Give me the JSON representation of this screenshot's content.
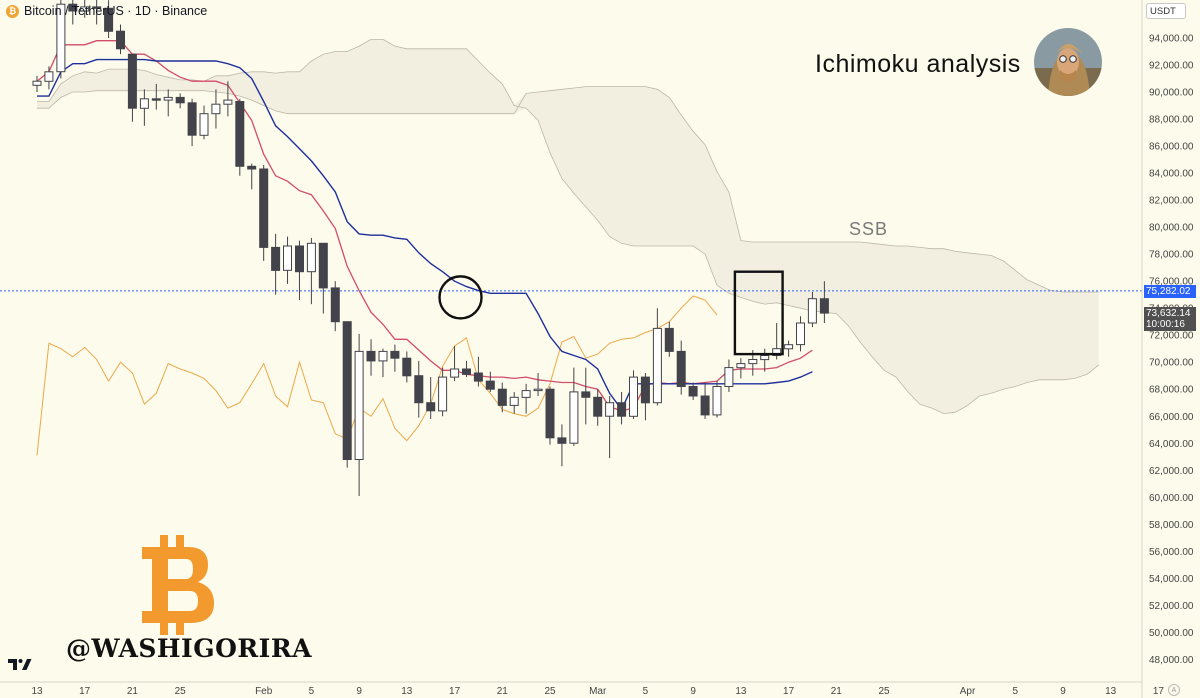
{
  "header": {
    "symbol_title": "Bitcoin / TetherUS · 1D · Binance",
    "currency": "USDT"
  },
  "headline": "Ichimoku analysis",
  "annotation_ssb": "SSB",
  "watermark_handle": "@WASHIGORIRA",
  "price_labels": {
    "last_price": "75,282.02",
    "current_price": "73,632.14",
    "countdown": "10:00:16"
  },
  "colors": {
    "background": "#fdfbeb",
    "bull_candle": "#ffffff",
    "bear_candle": "#43434b",
    "tenkan": "#d24c6c",
    "kijun": "#1f2f9c",
    "chikou": "#eba94c",
    "kumo": "#ede9dc",
    "last_price_label": "#2962ff",
    "bitcoin_orange": "#f29a2e"
  },
  "chart_data": {
    "type": "candlestick",
    "ylim": [
      46700,
      96000
    ],
    "y_ticks": [
      48000,
      50000,
      52000,
      54000,
      56000,
      58000,
      60000,
      62000,
      64000,
      66000,
      68000,
      70000,
      72000,
      74000,
      76000,
      78000,
      80000,
      82000,
      84000,
      86000,
      88000,
      90000,
      92000,
      94000
    ],
    "y_tick_labels": [
      "48,000.00",
      "50,000.00",
      "52,000.00",
      "54,000.00",
      "56,000.00",
      "58,000.00",
      "60,000.00",
      "62,000.00",
      "64,000.00",
      "66,000.00",
      "68,000.00",
      "70,000.00",
      "72,000.00",
      "74,000.00",
      "76,000.00",
      "78,000.00",
      "80,000.00",
      "82,000.00",
      "84,000.00",
      "86,000.00",
      "88,000.00",
      "90,000.00",
      "92,000.00",
      "94,000.00"
    ],
    "x_tick_labels": [
      {
        "day": 0,
        "label": "13"
      },
      {
        "day": 4,
        "label": "17"
      },
      {
        "day": 8,
        "label": "21"
      },
      {
        "day": 12,
        "label": "25"
      },
      {
        "day": 19,
        "label": "Feb"
      },
      {
        "day": 23,
        "label": "5"
      },
      {
        "day": 27,
        "label": "9"
      },
      {
        "day": 31,
        "label": "13"
      },
      {
        "day": 35,
        "label": "17"
      },
      {
        "day": 39,
        "label": "21"
      },
      {
        "day": 43,
        "label": "25"
      },
      {
        "day": 47,
        "label": "Mar"
      },
      {
        "day": 51,
        "label": "5"
      },
      {
        "day": 55,
        "label": "9"
      },
      {
        "day": 59,
        "label": "13"
      },
      {
        "day": 63,
        "label": "17"
      },
      {
        "day": 67,
        "label": "21"
      },
      {
        "day": 71,
        "label": "25"
      },
      {
        "day": 78,
        "label": "Apr"
      },
      {
        "day": 82,
        "label": "5"
      },
      {
        "day": 86,
        "label": "9"
      },
      {
        "day": 90,
        "label": "13"
      },
      {
        "day": 94,
        "label": "17"
      }
    ],
    "candles": [
      {
        "o": 90500,
        "h": 91200,
        "l": 90000,
        "c": 90800
      },
      {
        "o": 90800,
        "h": 91900,
        "l": 90200,
        "c": 91500
      },
      {
        "o": 91500,
        "h": 97000,
        "l": 91000,
        "c": 96500
      },
      {
        "o": 96500,
        "h": 97000,
        "l": 95000,
        "c": 96000
      },
      {
        "o": 96000,
        "h": 97000,
        "l": 95500,
        "c": 96300
      },
      {
        "o": 96300,
        "h": 97500,
        "l": 95000,
        "c": 96200
      },
      {
        "o": 96200,
        "h": 96800,
        "l": 94000,
        "c": 94500
      },
      {
        "o": 94500,
        "h": 95000,
        "l": 92800,
        "c": 93200
      },
      {
        "o": 92800,
        "h": 92800,
        "l": 87800,
        "c": 88800
      },
      {
        "o": 88800,
        "h": 90200,
        "l": 87500,
        "c": 89500
      },
      {
        "o": 89500,
        "h": 90600,
        "l": 88700,
        "c": 89400
      },
      {
        "o": 89400,
        "h": 90200,
        "l": 88200,
        "c": 89600
      },
      {
        "o": 89600,
        "h": 89900,
        "l": 88800,
        "c": 89200
      },
      {
        "o": 89200,
        "h": 89500,
        "l": 86000,
        "c": 86800
      },
      {
        "o": 86800,
        "h": 89000,
        "l": 86500,
        "c": 88400
      },
      {
        "o": 88400,
        "h": 90200,
        "l": 87300,
        "c": 89100
      },
      {
        "o": 89100,
        "h": 90800,
        "l": 88200,
        "c": 89400
      },
      {
        "o": 89300,
        "h": 89500,
        "l": 83800,
        "c": 84500
      },
      {
        "o": 84500,
        "h": 84700,
        "l": 82800,
        "c": 84300
      },
      {
        "o": 84300,
        "h": 84600,
        "l": 77500,
        "c": 78500
      },
      {
        "o": 78500,
        "h": 79500,
        "l": 75000,
        "c": 76800
      },
      {
        "o": 76800,
        "h": 79300,
        "l": 75800,
        "c": 78600
      },
      {
        "o": 78600,
        "h": 79000,
        "l": 74600,
        "c": 76700
      },
      {
        "o": 76700,
        "h": 79200,
        "l": 74300,
        "c": 78800
      },
      {
        "o": 78800,
        "h": 78800,
        "l": 73600,
        "c": 75500
      },
      {
        "o": 75500,
        "h": 76000,
        "l": 72300,
        "c": 73000
      },
      {
        "o": 73000,
        "h": 73000,
        "l": 62200,
        "c": 62800
      },
      {
        "o": 62800,
        "h": 72100,
        "l": 60100,
        "c": 70800
      },
      {
        "o": 70800,
        "h": 71700,
        "l": 69000,
        "c": 70100
      },
      {
        "o": 70100,
        "h": 71000,
        "l": 68900,
        "c": 70800
      },
      {
        "o": 70800,
        "h": 71300,
        "l": 69300,
        "c": 70300
      },
      {
        "o": 70300,
        "h": 70800,
        "l": 68500,
        "c": 69000
      },
      {
        "o": 69000,
        "h": 70100,
        "l": 65900,
        "c": 67000
      },
      {
        "o": 67000,
        "h": 68900,
        "l": 65800,
        "c": 66400
      },
      {
        "o": 66400,
        "h": 69600,
        "l": 66000,
        "c": 68900
      },
      {
        "o": 68900,
        "h": 71200,
        "l": 68600,
        "c": 69500
      },
      {
        "o": 69500,
        "h": 70100,
        "l": 68900,
        "c": 69100
      },
      {
        "o": 69200,
        "h": 70400,
        "l": 68200,
        "c": 68600
      },
      {
        "o": 68600,
        "h": 69300,
        "l": 67800,
        "c": 68000
      },
      {
        "o": 68000,
        "h": 68500,
        "l": 66300,
        "c": 66800
      },
      {
        "o": 66800,
        "h": 67800,
        "l": 66200,
        "c": 67400
      },
      {
        "o": 67400,
        "h": 68400,
        "l": 66200,
        "c": 67900
      },
      {
        "o": 67900,
        "h": 69200,
        "l": 67500,
        "c": 68000
      },
      {
        "o": 68000,
        "h": 68200,
        "l": 63900,
        "c": 64400
      },
      {
        "o": 64400,
        "h": 65400,
        "l": 62300,
        "c": 64000
      },
      {
        "o": 64000,
        "h": 69600,
        "l": 63800,
        "c": 67800
      },
      {
        "o": 67800,
        "h": 69600,
        "l": 65400,
        "c": 67400
      },
      {
        "o": 67400,
        "h": 68000,
        "l": 65300,
        "c": 66000
      },
      {
        "o": 66000,
        "h": 67500,
        "l": 62900,
        "c": 67000
      },
      {
        "o": 67000,
        "h": 67800,
        "l": 65400,
        "c": 66000
      },
      {
        "o": 66000,
        "h": 69400,
        "l": 65800,
        "c": 68900
      },
      {
        "o": 68900,
        "h": 69200,
        "l": 65700,
        "c": 67000
      },
      {
        "o": 67000,
        "h": 74000,
        "l": 66800,
        "c": 72500
      },
      {
        "o": 72500,
        "h": 73000,
        "l": 70400,
        "c": 70800
      },
      {
        "o": 70800,
        "h": 71600,
        "l": 67600,
        "c": 68200
      },
      {
        "o": 68200,
        "h": 68500,
        "l": 67200,
        "c": 67500
      },
      {
        "o": 67500,
        "h": 68500,
        "l": 65800,
        "c": 66100
      },
      {
        "o": 66100,
        "h": 68600,
        "l": 65900,
        "c": 68200
      },
      {
        "o": 68200,
        "h": 70200,
        "l": 67800,
        "c": 69600
      },
      {
        "o": 69600,
        "h": 70300,
        "l": 68800,
        "c": 69900
      },
      {
        "o": 69900,
        "h": 70900,
        "l": 69000,
        "c": 70200
      },
      {
        "o": 70200,
        "h": 71000,
        "l": 69300,
        "c": 70500
      },
      {
        "o": 70500,
        "h": 72900,
        "l": 70200,
        "c": 71000
      },
      {
        "o": 71000,
        "h": 71600,
        "l": 70400,
        "c": 71300
      },
      {
        "o": 71300,
        "h": 73400,
        "l": 70800,
        "c": 72900
      },
      {
        "o": 72900,
        "h": 75200,
        "l": 72600,
        "c": 74700
      },
      {
        "o": 74700,
        "h": 76000,
        "l": 72900,
        "c": 73632
      }
    ],
    "series": [
      {
        "name": "",
        "role": "tenkan",
        "x0": 0,
        "values": [
          90800,
          91500,
          93500,
          93500,
          93500,
          93800,
          93800,
          93800,
          92800,
          92800,
          92300,
          91600,
          91100,
          90800,
          90800,
          90800,
          90500,
          89200,
          87900,
          85400,
          83800,
          83400,
          82700,
          82400,
          81200,
          79900,
          77100,
          75300,
          73700,
          72800,
          71700,
          71700,
          70900,
          70100,
          69400,
          69400,
          69100,
          69000,
          68900,
          68900,
          68800,
          68900,
          68700,
          68600,
          68500,
          68500,
          68200,
          68000,
          66700,
          66400,
          66600,
          68300,
          68500,
          68400,
          68500,
          68400,
          68500,
          68600,
          69400,
          69500,
          69500,
          69500,
          69600,
          70000,
          70300,
          70900
        ]
      },
      {
        "name": "",
        "role": "kijun",
        "x0": 0,
        "values": [
          89700,
          89700,
          91500,
          92100,
          92100,
          92400,
          92400,
          92400,
          92400,
          92400,
          92300,
          92300,
          92300,
          92300,
          92300,
          92300,
          92100,
          91800,
          91000,
          89300,
          87500,
          86700,
          85800,
          84900,
          83800,
          82600,
          80400,
          79500,
          79400,
          79400,
          79200,
          79100,
          78100,
          77300,
          76700,
          76000,
          75600,
          75300,
          75100,
          75100,
          75100,
          75100,
          73600,
          71900,
          70800,
          70500,
          70200,
          69500,
          67700,
          66500,
          68400,
          68400,
          68400,
          68400,
          68400,
          68400,
          68400,
          68400,
          68400,
          68400,
          68400,
          68400,
          68500,
          68600,
          68900,
          69300
        ]
      },
      {
        "name": "",
        "role": "chikou",
        "x0": 0,
        "values": [
          63100,
          71400,
          71000,
          70400,
          71100,
          70200,
          68600,
          70000,
          69200,
          66900,
          67700,
          69900,
          69500,
          69200,
          68800,
          67900,
          66600,
          67000,
          68400,
          69900,
          67500,
          66700,
          70000,
          67200,
          67000,
          64700,
          64300,
          66600,
          66000,
          67300,
          65100,
          64200,
          65300,
          66900,
          69700,
          71200,
          71800,
          68700,
          67700,
          66500,
          66200,
          66000,
          66600,
          68400,
          71500,
          71900,
          70300,
          70600,
          71400,
          71700,
          71800,
          72200,
          72500,
          73000,
          74000,
          74900,
          74600,
          73500
        ]
      },
      {
        "name": "",
        "role": "senkou_a",
        "x0": 0,
        "values": [
          89300,
          89300,
          90600,
          91200,
          91500,
          91400,
          91700,
          91700,
          91700,
          91600,
          91300,
          91100,
          90900,
          90900,
          90800,
          91200,
          91200,
          91400,
          91500,
          91500,
          91400,
          91500,
          91500,
          92300,
          92800,
          93000,
          93000,
          93400,
          93900,
          93900,
          93400,
          93200,
          93200,
          93200,
          93200,
          93200,
          93200,
          92300,
          91400,
          90600,
          89000,
          88800,
          87900,
          85500,
          83600,
          82500,
          81500,
          80500,
          79300,
          78800,
          78600,
          78600,
          78600,
          78600,
          78600,
          78600,
          78000,
          75700,
          75100,
          74800,
          74500,
          74300,
          74400,
          74200,
          74000,
          73800,
          73700,
          73600,
          72700,
          71500,
          70400,
          69400,
          68900,
          67800,
          66900,
          66600,
          66200,
          66300,
          66800,
          67500,
          67700,
          68000,
          68200,
          68500,
          68700,
          68700,
          68700,
          68800,
          69100,
          69800
        ]
      },
      {
        "name": "",
        "role": "senkou_b",
        "x0": 0,
        "values": [
          88800,
          88800,
          89600,
          90000,
          90000,
          90100,
          90100,
          90100,
          90100,
          90100,
          90100,
          90100,
          90100,
          90100,
          90100,
          90000,
          89900,
          89700,
          89400,
          89000,
          88600,
          88400,
          88400,
          88400,
          88400,
          88400,
          88400,
          88400,
          88400,
          88400,
          88400,
          88400,
          88400,
          88400,
          88400,
          88400,
          88400,
          88400,
          88400,
          88400,
          88400,
          89900,
          90000,
          90100,
          90200,
          90300,
          90400,
          90400,
          90400,
          90400,
          90400,
          90400,
          90200,
          89600,
          88300,
          87100,
          86100,
          84100,
          82600,
          79000,
          78900,
          78900,
          78900,
          78900,
          78900,
          78900,
          78900,
          78900,
          78900,
          78900,
          78800,
          78700,
          78600,
          78600,
          78500,
          78400,
          78400,
          78200,
          78100,
          78000,
          77900,
          77500,
          76800,
          76100,
          75700,
          75300,
          75200,
          75200,
          75200,
          75200
        ]
      }
    ],
    "last_price_line": 75282.02,
    "annotations": [
      "circle: Tenkan crosses Kijun near 74,800 around Feb 18",
      "box: last three candles around Mar 15-17"
    ]
  }
}
